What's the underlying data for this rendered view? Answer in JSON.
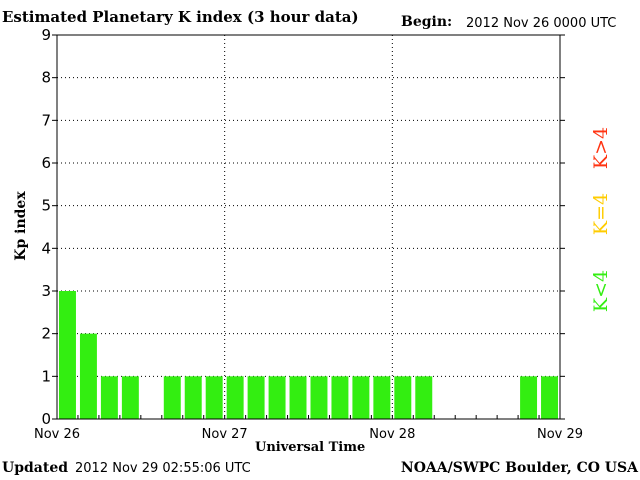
{
  "header": {
    "title": "Estimated Planetary K index (3 hour data)",
    "begin_label": "Begin:",
    "begin_value": "2012 Nov 26 0000 UTC"
  },
  "footer": {
    "updated_label": "Updated",
    "updated_value": "2012 Nov 29 02:55:06 UTC",
    "credit": "NOAA/SWPC Boulder, CO USA"
  },
  "legend": {
    "high": {
      "label": "K>4",
      "color": "#ff3311"
    },
    "equal": {
      "label": "K=4",
      "color": "#ffcc00"
    },
    "low": {
      "label": "K<4",
      "color": "#33ee11"
    }
  },
  "chart_data": {
    "type": "bar",
    "xlabel": "Universal Time",
    "ylabel": "Kp index",
    "ylim": [
      0,
      9
    ],
    "yticks": [
      0,
      1,
      2,
      3,
      4,
      5,
      6,
      7,
      8,
      9
    ],
    "grid": true,
    "xtick_labels": [
      "Nov 26",
      "Nov 27",
      "Nov 28",
      "Nov 29"
    ],
    "x_start": "2012-11-26 00:00 UTC",
    "x_end": "2012-11-29 00:00 UTC",
    "interval_hours": 3,
    "bar_color": "#33ee11",
    "categories": [
      "Nov 26 00-03",
      "Nov 26 03-06",
      "Nov 26 06-09",
      "Nov 26 09-12",
      "Nov 26 12-15",
      "Nov 26 15-18",
      "Nov 26 18-21",
      "Nov 26 21-24",
      "Nov 27 00-03",
      "Nov 27 03-06",
      "Nov 27 06-09",
      "Nov 27 09-12",
      "Nov 27 12-15",
      "Nov 27 15-18",
      "Nov 27 18-21",
      "Nov 27 21-24",
      "Nov 28 00-03",
      "Nov 28 03-06",
      "Nov 28 06-09",
      "Nov 28 09-12",
      "Nov 28 12-15",
      "Nov 28 15-18",
      "Nov 28 18-21",
      "Nov 28 21-24"
    ],
    "values": [
      3,
      2,
      1,
      1,
      null,
      1,
      1,
      1,
      1,
      1,
      1,
      1,
      1,
      1,
      1,
      1,
      1,
      1,
      null,
      null,
      null,
      null,
      1,
      1
    ]
  }
}
